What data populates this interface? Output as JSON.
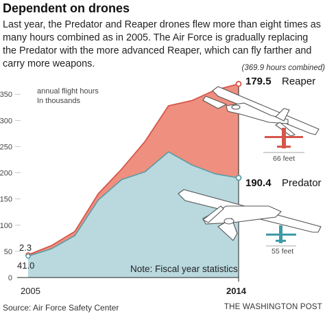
{
  "title": "Dependent on drones",
  "subtitle": "Last year, the Predator and Reaper drones flew more than eight times as many hours combined as in 2005. The Air Force is gradually replacing the Predator with the more advanced Reaper, which can fly farther and carry more weapons.",
  "source": "Source: Air Force Safety Center",
  "brand": "THE WASHINGTON POST",
  "colors": {
    "reaper": "#ef8f7f",
    "reaper_line": "#d6554a",
    "predator": "#b9d9df",
    "predator_line": "#5a9ba6"
  },
  "chart_data": {
    "type": "area",
    "stacked": true,
    "y_unit_label_line1": "annual flight hours",
    "y_unit_label_line2": "In thousands",
    "x": [
      2005,
      2006,
      2007,
      2008,
      2009,
      2010,
      2011,
      2012,
      2013,
      2014
    ],
    "xtick_labels": [
      "2005",
      "2014"
    ],
    "ylim": [
      0,
      370
    ],
    "yticks": [
      0,
      50,
      100,
      150,
      200,
      250,
      300,
      350
    ],
    "series": [
      {
        "name": "Predator",
        "values": [
          41.0,
          55,
          80,
          148,
          187,
          202,
          240,
          215,
          198,
          190.4
        ]
      },
      {
        "name": "Reaper",
        "values": [
          2.3,
          6,
          8,
          12,
          20,
          58,
          88,
          123,
          160,
          179.5
        ]
      }
    ],
    "totals": [
      43.3,
      61,
      88,
      160,
      207,
      260,
      328,
      338,
      358,
      369.9
    ],
    "labels": {
      "start_reaper": "2.3",
      "start_predator": "41.0",
      "end_reaper_value": "179.5",
      "end_reaper_name": "Reaper",
      "end_predator_value": "190.4",
      "end_predator_name": "Predator",
      "combined_note": "(369.9 hours combined)",
      "note": "Note: Fiscal year statistics",
      "reaper_wingspan": "66 feet",
      "predator_wingspan": "55 feet"
    },
    "grid": false
  }
}
